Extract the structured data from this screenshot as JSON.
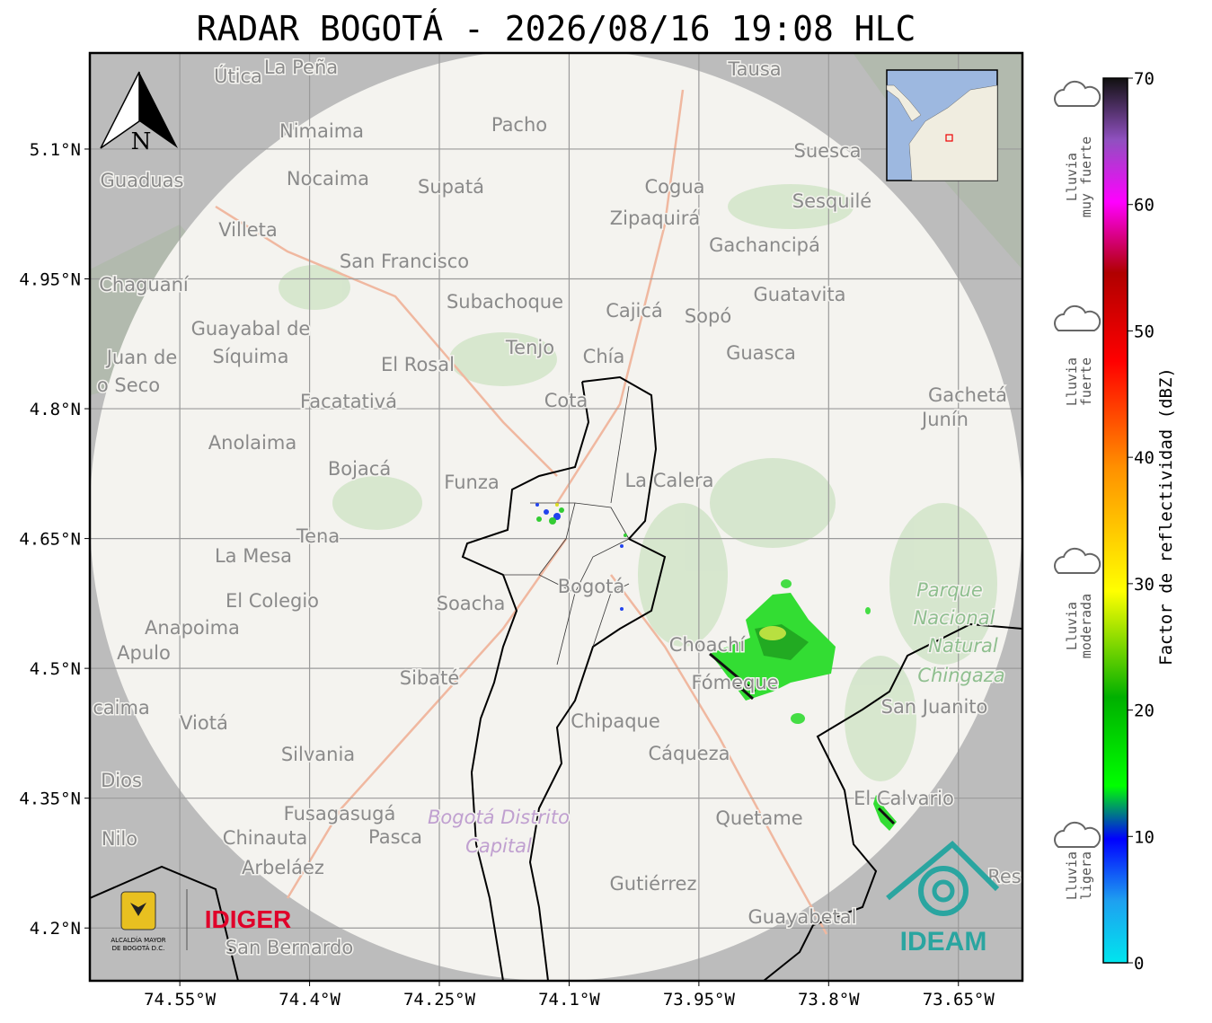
{
  "map": {
    "title": "RADAR BOGOTÁ - 2026/08/16 19:08 HLC",
    "xlim": [
      -74.654,
      -73.576
    ],
    "ylim": [
      4.139,
      5.211
    ],
    "xticks": [
      {
        "value": -74.55,
        "label": "74.55°W"
      },
      {
        "value": -74.4,
        "label": "74.4°W"
      },
      {
        "value": -74.25,
        "label": "74.25°W"
      },
      {
        "value": -74.1,
        "label": "74.1°W"
      },
      {
        "value": -73.95,
        "label": "73.95°W"
      },
      {
        "value": -73.8,
        "label": "73.8°W"
      },
      {
        "value": -73.65,
        "label": "73.65°W"
      }
    ],
    "yticks": [
      {
        "value": 5.1,
        "label": "5.1°N"
      },
      {
        "value": 4.95,
        "label": "4.95°N"
      },
      {
        "value": 4.8,
        "label": "4.8°N"
      },
      {
        "value": 4.65,
        "label": "4.65°N"
      },
      {
        "value": 4.5,
        "label": "4.5°N"
      },
      {
        "value": 4.35,
        "label": "4.35°N"
      },
      {
        "value": 4.2,
        "label": "4.2°N"
      }
    ],
    "north": "N",
    "places": [
      "Útica",
      "La Peña",
      "Tausa",
      "Pacho",
      "Nimaima",
      "Guaduas",
      "Nocaima",
      "Supatá",
      "Cogua",
      "Suesca",
      "Sesquilé",
      "Zipaquirá",
      "Villeta",
      "Gachancipá",
      "San Francisco",
      "Chaguaní",
      "Guatavita",
      "Subachoque",
      "Cajicá",
      "Sopó",
      "Guayabal de",
      "Síquima",
      "Tenjo",
      "Chía",
      "Guasca",
      "Juan de",
      "o Seco",
      "El Rosal",
      "Cota",
      "Facatativá",
      "Gachetá",
      "Junín",
      "Anolaima",
      "Bojacá",
      "Funza",
      "La Calera",
      "Tena",
      "La Mesa",
      "Bogotá",
      "El Colegio",
      "Soacha",
      "Anapoima",
      "Apulo",
      "Choachí",
      "Fómeque",
      "Sibaté",
      "San Juanito",
      "caima",
      "Viotá",
      "Chipaque",
      "Silvania",
      "Cáqueza",
      "Dios",
      "El Calvario",
      "Fusagasugá",
      "Quetame",
      "Nilo",
      "Chinauta",
      "Pasca",
      "Arbeláez",
      "Res",
      "Gutiérrez",
      "Guayabetal",
      "San Bernardo"
    ],
    "park": [
      "Parque",
      "Nacional",
      "Natural",
      "Chingaza"
    ],
    "district": [
      "Bogotá Distrito",
      "Capital"
    ],
    "logos": {
      "alcaldia": [
        "ALCALDÍA MAYOR",
        "DE BOGOTÁ D.C."
      ],
      "idiger": "IDIGER",
      "ideam": "IDEAM"
    }
  },
  "colorbar": {
    "label": "Factor de reflectividad (dBZ)",
    "lim": [
      0,
      70
    ],
    "ticks": [
      0,
      10,
      20,
      30,
      40,
      50,
      60,
      70
    ],
    "intensity": [
      [
        "Lluvia",
        "muy fuerte"
      ],
      [
        "Lluvia",
        "fuerte"
      ],
      [
        "Lluvia",
        "moderada"
      ],
      [
        "Lluvia",
        "ligera"
      ]
    ]
  }
}
